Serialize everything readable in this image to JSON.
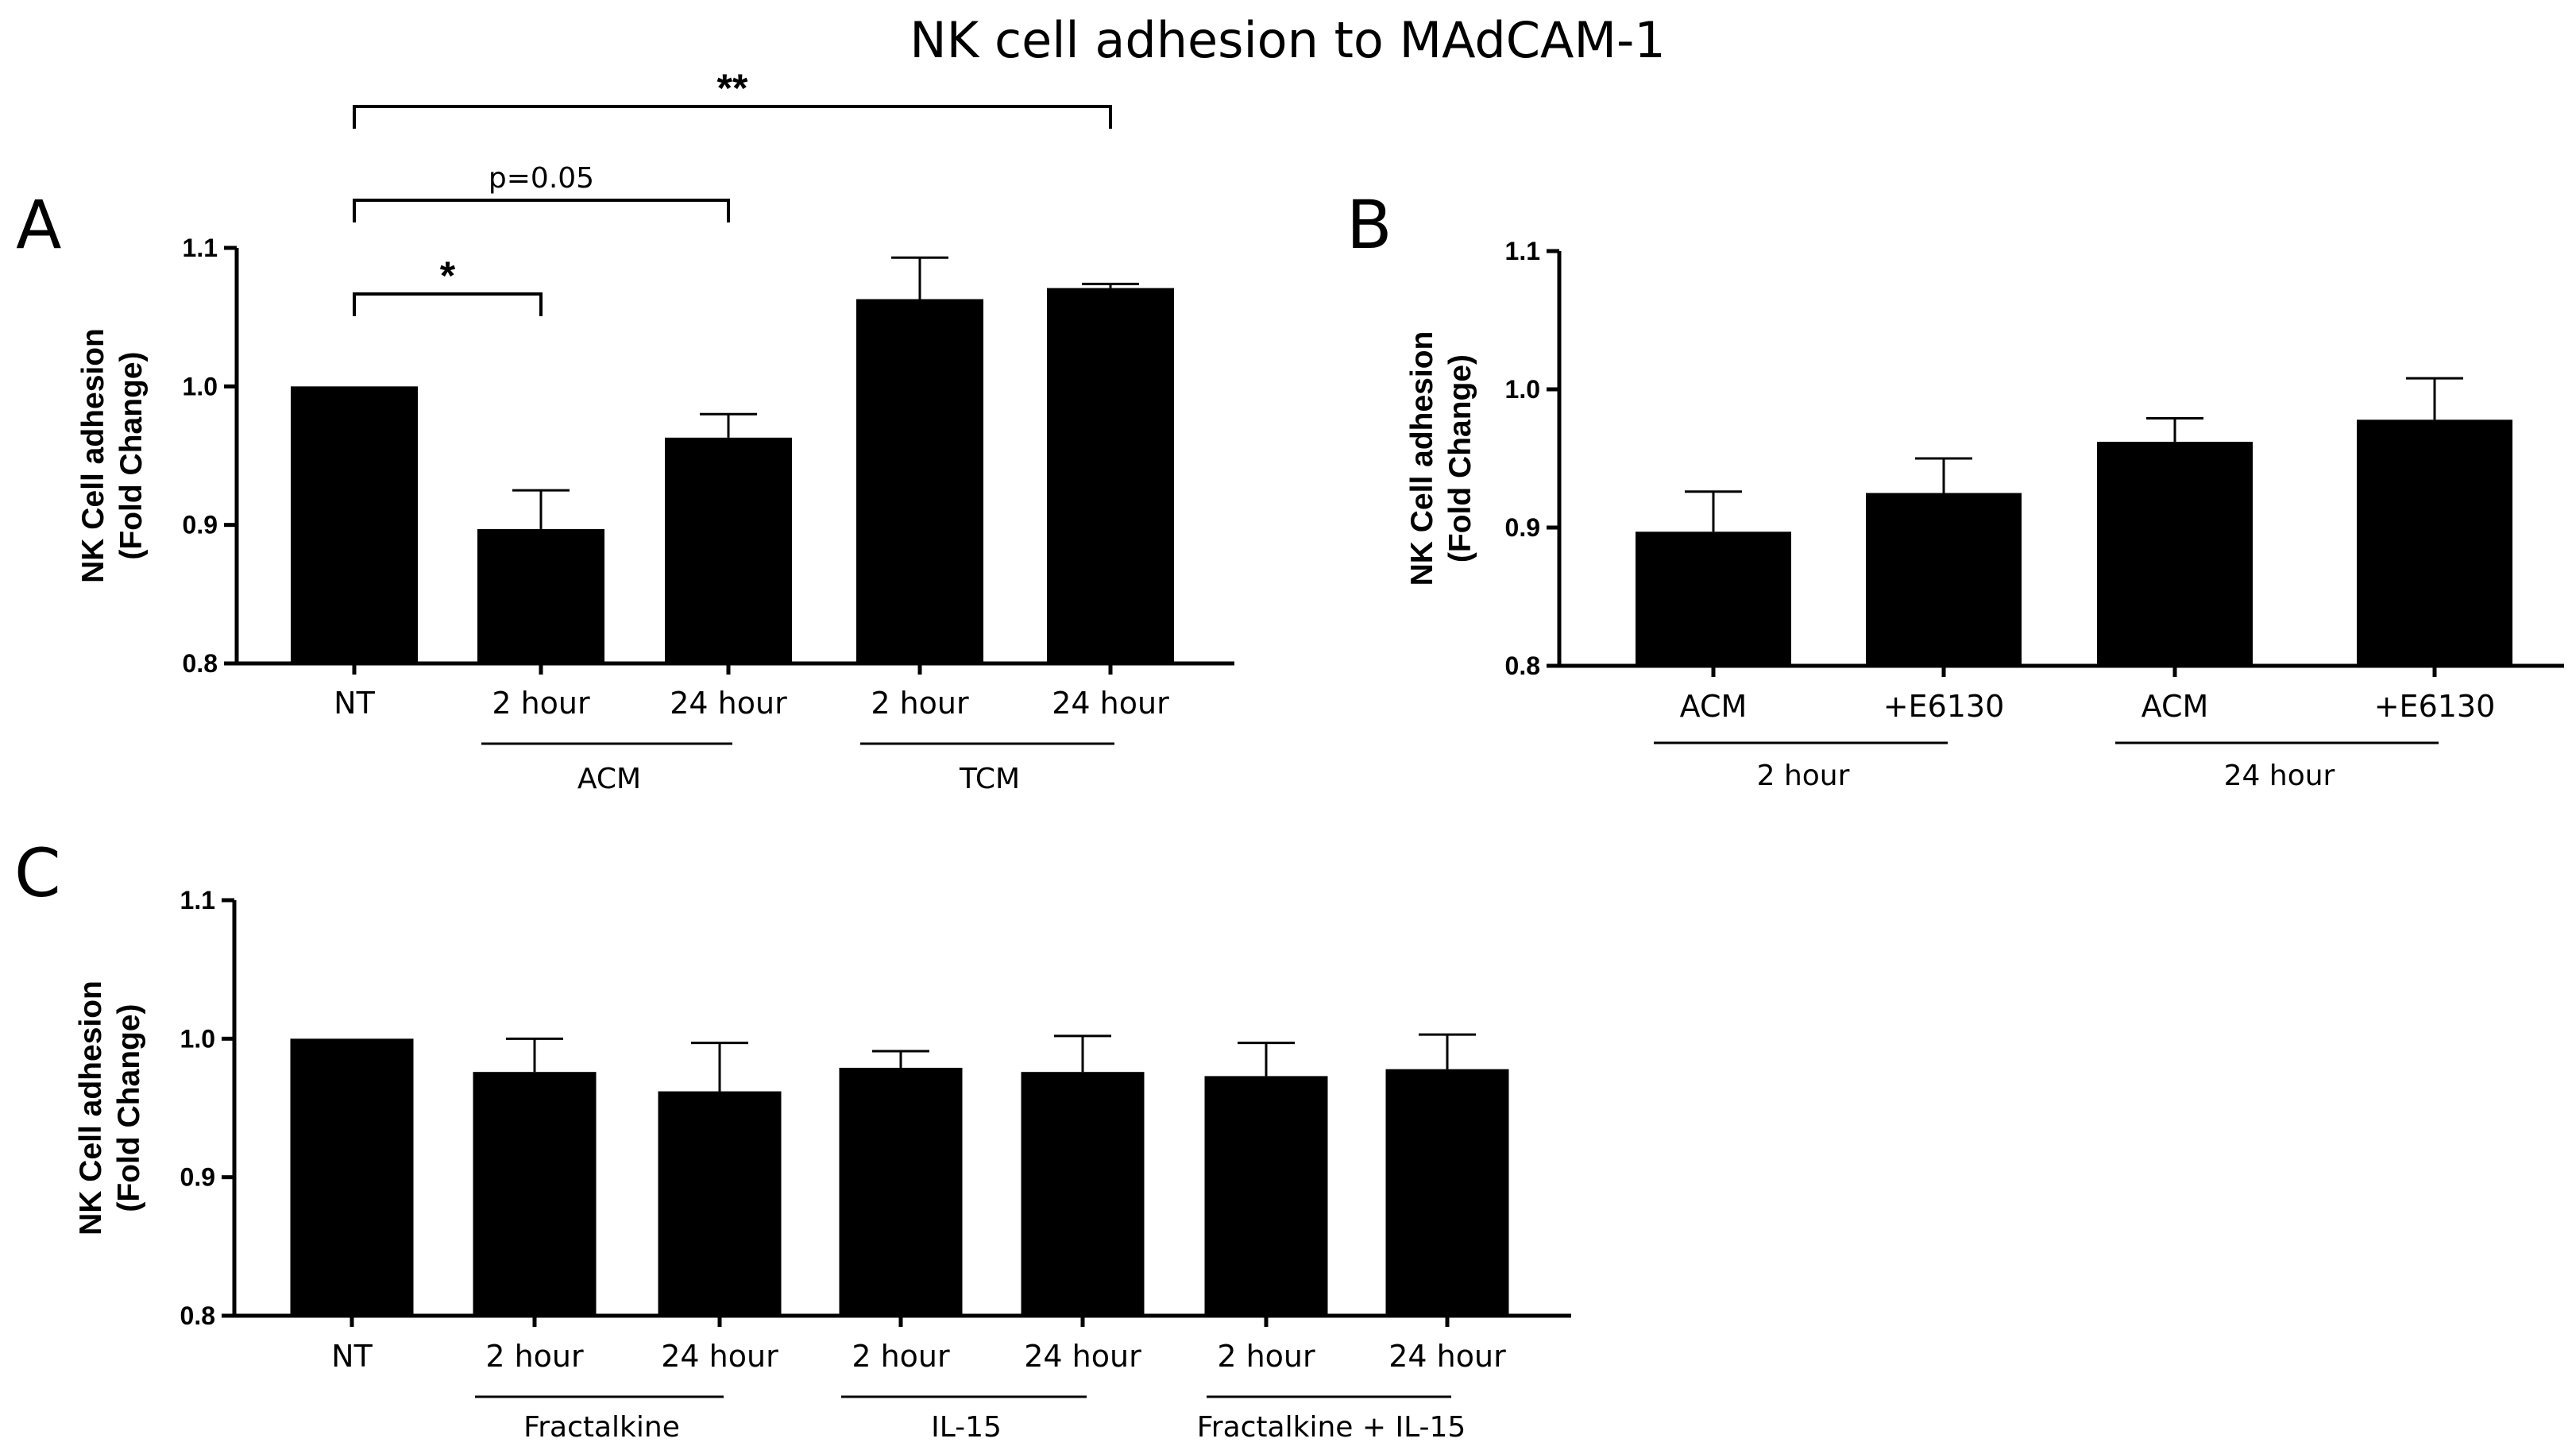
{
  "title": "NK cell adhesion to MAdCAM-1",
  "chart_data": [
    {
      "panel": "A",
      "type": "bar",
      "ylabel_line1": "NK Cell adhesion",
      "ylabel_line2": "(Fold Change)",
      "ylim": [
        0.8,
        1.1
      ],
      "yticks": [
        "0.8",
        "0.9",
        "1.0",
        "1.1"
      ],
      "categories": [
        "NT",
        "2 hour",
        "24 hour",
        "2 hour",
        "24 hour"
      ],
      "values": [
        1.0,
        0.897,
        0.963,
        1.063,
        1.071
      ],
      "errors": [
        0.0,
        0.028,
        0.017,
        0.03,
        0.003
      ],
      "groups": [
        {
          "label": "ACM",
          "from": 1,
          "to": 2
        },
        {
          "label": "TCM",
          "from": 3,
          "to": 4
        }
      ],
      "significance": [
        {
          "from": 0,
          "to": 1,
          "label": "*"
        },
        {
          "from": 0,
          "to": 2,
          "label": "p=0.05"
        },
        {
          "from": 0,
          "to": 4,
          "label": "**"
        }
      ]
    },
    {
      "panel": "B",
      "type": "bar",
      "ylabel_line1": "NK Cell adhesion",
      "ylabel_line2": "(Fold Change)",
      "ylim": [
        0.8,
        1.1
      ],
      "yticks": [
        "0.8",
        "0.9",
        "1.0",
        "1.1"
      ],
      "categories": [
        "ACM",
        "+E6130",
        "ACM",
        "+E6130"
      ],
      "values": [
        0.897,
        0.925,
        0.962,
        0.978
      ],
      "errors": [
        0.029,
        0.025,
        0.017,
        0.03
      ],
      "groups": [
        {
          "label": "2 hour",
          "from": 0,
          "to": 1
        },
        {
          "label": "24 hour",
          "from": 2,
          "to": 3
        }
      ],
      "significance": []
    },
    {
      "panel": "C",
      "type": "bar",
      "ylabel_line1": "NK Cell adhesion",
      "ylabel_line2": "(Fold Change)",
      "ylim": [
        0.8,
        1.1
      ],
      "yticks": [
        "0.8",
        "0.9",
        "1.0",
        "1.1"
      ],
      "categories": [
        "NT",
        "2 hour",
        "24 hour",
        "2 hour",
        "24 hour",
        "2 hour",
        "24 hour"
      ],
      "values": [
        1.0,
        0.976,
        0.962,
        0.979,
        0.976,
        0.973,
        0.978
      ],
      "errors": [
        0.0,
        0.024,
        0.035,
        0.012,
        0.026,
        0.024,
        0.025
      ],
      "groups": [
        {
          "label": "Fractalkine",
          "from": 1,
          "to": 2
        },
        {
          "label": "IL-15",
          "from": 3,
          "to": 4
        },
        {
          "label": "Fractalkine + IL-15",
          "from": 5,
          "to": 6
        }
      ],
      "significance": []
    }
  ]
}
